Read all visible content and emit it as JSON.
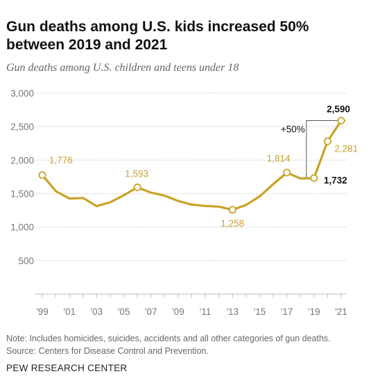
{
  "header": {
    "title": "Gun deaths among U.S. kids increased 50% between 2019 and 2021",
    "subtitle": "Gun deaths among U.S. children and teens under 18"
  },
  "footer": {
    "note": "Note: Includes homicides, suicides, accidents and all other categories of gun deaths.",
    "source": "Source: Centers for Disease Control and Prevention.",
    "brand": "PEW RESEARCH CENTER"
  },
  "colors": {
    "line": "#c9a227",
    "label": "#c8a232",
    "grid": "#bdbdbd",
    "axis_text": "#777777",
    "emphasis": "#111111"
  },
  "chart_data": {
    "type": "line",
    "x": [
      1999,
      2000,
      2001,
      2002,
      2003,
      2004,
      2005,
      2006,
      2007,
      2008,
      2009,
      2010,
      2011,
      2012,
      2013,
      2014,
      2015,
      2016,
      2017,
      2018,
      2019,
      2020,
      2021
    ],
    "series": [
      {
        "values": [
          1776,
          1535,
          1425,
          1435,
          1312,
          1370,
          1475,
          1593,
          1515,
          1470,
          1390,
          1335,
          1315,
          1305,
          1258,
          1330,
          1460,
          1640,
          1814,
          1725,
          1732,
          2281,
          2590
        ]
      }
    ],
    "xticks": [
      "'99",
      "'01",
      "'03",
      "'05",
      "'07",
      "'09",
      "'11",
      "'13",
      "'15",
      "'17",
      "'19",
      "'21"
    ],
    "yticks": [
      "500",
      "1,000",
      "1,500",
      "2,000",
      "2,500",
      "3,000"
    ],
    "ylim": [
      0,
      3000
    ],
    "grid": true,
    "data_labels": [
      {
        "year": 1999,
        "text": "1,776",
        "bold": false
      },
      {
        "year": 2006,
        "text": "1,593",
        "bold": false
      },
      {
        "year": 2013,
        "text": "1,258",
        "bold": false
      },
      {
        "year": 2017,
        "text": "1,814",
        "bold": false
      },
      {
        "year": 2019,
        "text": "1,732",
        "bold": true
      },
      {
        "year": 2020,
        "text": "2,281",
        "bold": false
      },
      {
        "year": 2021,
        "text": "2,590",
        "bold": true
      }
    ],
    "annotation": {
      "text": "+50%",
      "from_year": 2019,
      "to_year": 2021
    }
  }
}
